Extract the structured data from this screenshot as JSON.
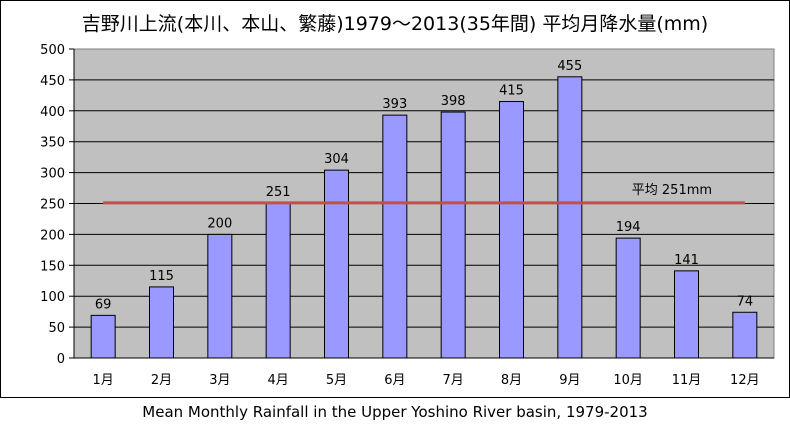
{
  "chart_data": {
    "type": "bar",
    "title": "吉野川上流(本川、本山、繁藤)1979～2013(35年間) 平均月降水量(mm)",
    "categories": [
      "1月",
      "2月",
      "3月",
      "4月",
      "5月",
      "6月",
      "7月",
      "8月",
      "9月",
      "10月",
      "11月",
      "12月"
    ],
    "values": [
      69,
      115,
      200,
      251,
      304,
      393,
      398,
      415,
      455,
      194,
      141,
      74
    ],
    "data_labels": [
      "69",
      "115",
      "200",
      "251",
      "304",
      "393",
      "398",
      "415",
      "455",
      "194",
      "141",
      "74"
    ],
    "ylim": [
      0,
      500
    ],
    "yticks": [
      "0",
      "50",
      "100",
      "150",
      "200",
      "250",
      "300",
      "350",
      "400",
      "450",
      "500"
    ],
    "grid": true,
    "average": {
      "value": 251,
      "label": "平均 251mm"
    },
    "colors": {
      "bar": "#9999ff",
      "plot_bg": "#c0c0c0",
      "average_line": "#c0504d"
    }
  },
  "caption": "Mean Monthly Rainfall in the Upper Yoshino River basin, 1979-2013"
}
